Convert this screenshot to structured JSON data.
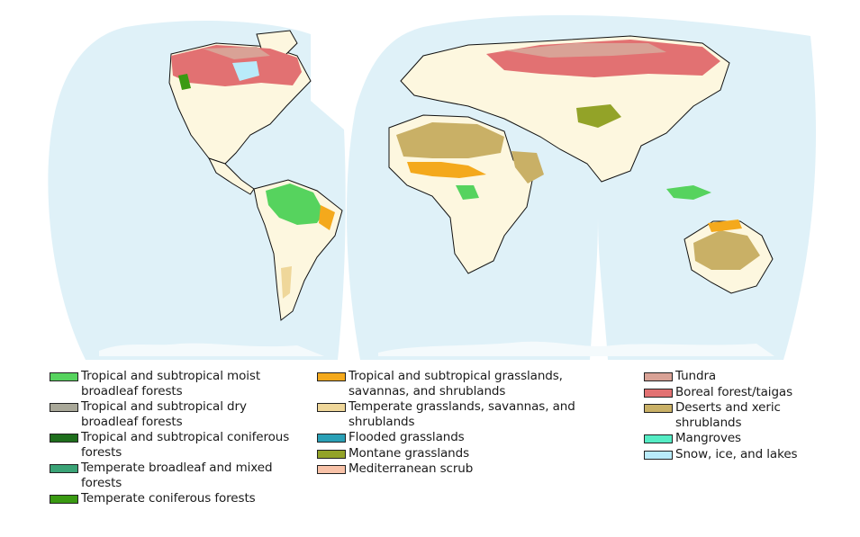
{
  "colors": {
    "ocean": "#dff1f8",
    "land": "#fdf7df",
    "border": "#111111",
    "ice": "#f4fafc"
  },
  "legend": {
    "col1": [
      {
        "key": "trop-moist",
        "label": "Tropical and subtropical moist broadleaf forests",
        "color": "#56d35e"
      },
      {
        "key": "trop-dry",
        "label": "Tropical and subtropical dry broadleaf forests",
        "color": "#a9a899"
      },
      {
        "key": "trop-conif",
        "label": "Tropical and subtropical coniferous forests",
        "color": "#1e6e1c"
      },
      {
        "key": "temp-broad",
        "label": "Temperate broadleaf and mixed forests",
        "color": "#3aa376"
      },
      {
        "key": "temp-conif",
        "label": "Temperate coniferous forests",
        "color": "#3a9a12"
      }
    ],
    "col2": [
      {
        "key": "trop-grass",
        "label": "Tropical and subtropical grasslands, savannas, and shrublands",
        "color": "#f4a91c"
      },
      {
        "key": "temp-grass",
        "label": "Temperate grasslands, savannas, and shrublands",
        "color": "#efd79a"
      },
      {
        "key": "flooded",
        "label": "Flooded grasslands",
        "color": "#2aa0b6"
      },
      {
        "key": "montane",
        "label": "Montane grasslands",
        "color": "#93a328"
      },
      {
        "key": "medit",
        "label": "Mediterranean scrub",
        "color": "#f8c2a8"
      }
    ],
    "col3": [
      {
        "key": "tundra",
        "label": "Tundra",
        "color": "#d9a296"
      },
      {
        "key": "boreal",
        "label": "Boreal forest/taigas",
        "color": "#e27172"
      },
      {
        "key": "desert",
        "label": "Deserts and xeric shrublands",
        "color": "#c9b066"
      },
      {
        "key": "mangrove",
        "label": "Mangroves",
        "color": "#55ecc4"
      },
      {
        "key": "snow",
        "label": "Snow, ice, and lakes",
        "color": "#b9ebfa"
      }
    ]
  }
}
